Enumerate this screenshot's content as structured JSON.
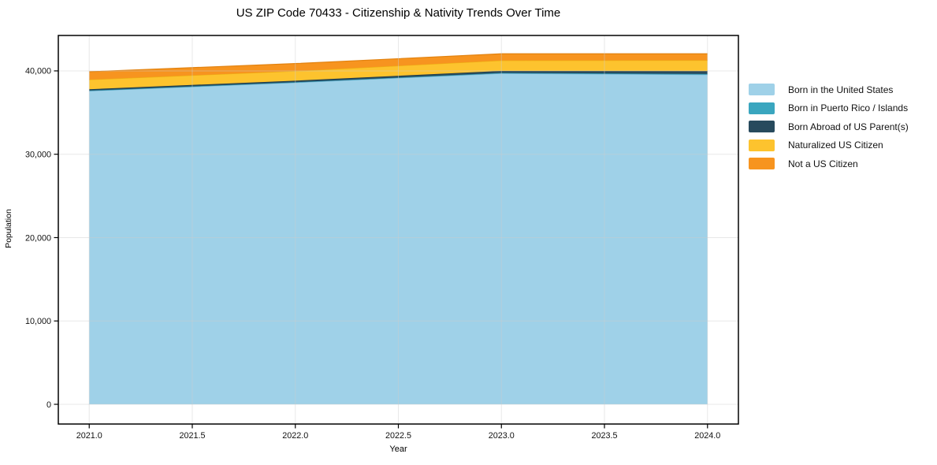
{
  "chart_data": {
    "type": "area",
    "stacked": true,
    "title": "US ZIP Code 70433 - Citizenship & Nativity Trends Over Time",
    "xlabel": "Year",
    "ylabel": "Population",
    "x": [
      2021,
      2022,
      2023,
      2024
    ],
    "series": [
      {
        "id": "born-us",
        "name": "Born in the United States",
        "color": "#9fd1e8",
        "edge": "#79b6d6",
        "values": [
          37600,
          38600,
          39700,
          39550
        ]
      },
      {
        "id": "born-pr",
        "name": "Born in Puerto Rico / Islands",
        "color": "#3aa6bf",
        "edge": "#2e93ab",
        "values": [
          40,
          50,
          60,
          90
        ]
      },
      {
        "id": "born-abroad",
        "name": "Born Abroad of US Parent(s)",
        "color": "#274a5d",
        "edge": "#1c3949",
        "values": [
          160,
          180,
          240,
          330
        ]
      },
      {
        "id": "naturalized",
        "name": "Naturalized US Citizen",
        "color": "#fdc32e",
        "edge": "#edb112",
        "values": [
          1150,
          1150,
          1250,
          1300
        ]
      },
      {
        "id": "not-citizen",
        "name": "Not a US Citizen",
        "color": "#f7941f",
        "edge": "#e2820f",
        "values": [
          950,
          900,
          800,
          780
        ]
      }
    ],
    "xlim": [
      2020.85,
      2024.15
    ],
    "ylim": [
      -2364,
      44250
    ],
    "x_ticks": [
      {
        "v": 2021.0,
        "label": "2021.0"
      },
      {
        "v": 2021.5,
        "label": "2021.5"
      },
      {
        "v": 2022.0,
        "label": "2022.0"
      },
      {
        "v": 2022.5,
        "label": "2022.5"
      },
      {
        "v": 2023.0,
        "label": "2023.0"
      },
      {
        "v": 2023.5,
        "label": "2023.5"
      },
      {
        "v": 2024.0,
        "label": "2024.0"
      }
    ],
    "y_ticks": [
      {
        "v": 0,
        "label": "0"
      },
      {
        "v": 10000,
        "label": "10,000"
      },
      {
        "v": 20000,
        "label": "20,000"
      },
      {
        "v": 30000,
        "label": "30,000"
      },
      {
        "v": 40000,
        "label": "40,000"
      }
    ],
    "grid": true,
    "grid_color": "#cdcdcd",
    "spine_color": "#000000",
    "legend_position": "right of plot, no frame"
  }
}
